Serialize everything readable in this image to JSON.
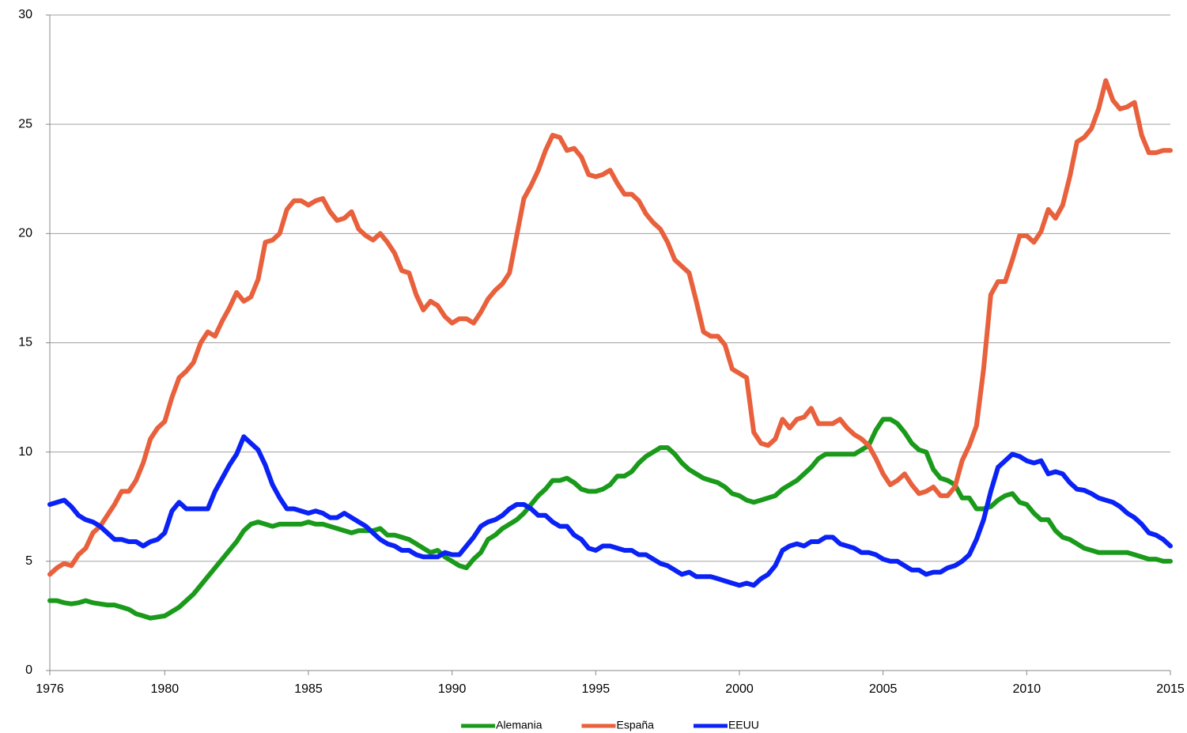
{
  "chart_data": {
    "type": "line",
    "x": [
      1976,
      1976.25,
      1976.5,
      1976.75,
      1977,
      1977.25,
      1977.5,
      1977.75,
      1978,
      1978.25,
      1978.5,
      1978.75,
      1979,
      1979.25,
      1979.5,
      1979.75,
      1980,
      1980.25,
      1980.5,
      1980.75,
      1981,
      1981.25,
      1981.5,
      1981.75,
      1982,
      1982.25,
      1982.5,
      1982.75,
      1983,
      1983.25,
      1983.5,
      1983.75,
      1984,
      1984.25,
      1984.5,
      1984.75,
      1985,
      1985.25,
      1985.5,
      1985.75,
      1986,
      1986.25,
      1986.5,
      1986.75,
      1987,
      1987.25,
      1987.5,
      1987.75,
      1988,
      1988.25,
      1988.5,
      1988.75,
      1989,
      1989.25,
      1989.5,
      1989.75,
      1990,
      1990.25,
      1990.5,
      1990.75,
      1991,
      1991.25,
      1991.5,
      1991.75,
      1992,
      1992.25,
      1992.5,
      1992.75,
      1993,
      1993.25,
      1993.5,
      1993.75,
      1994,
      1994.25,
      1994.5,
      1994.75,
      1995,
      1995.25,
      1995.5,
      1995.75,
      1996,
      1996.25,
      1996.5,
      1996.75,
      1997,
      1997.25,
      1997.5,
      1997.75,
      1998,
      1998.25,
      1998.5,
      1998.75,
      1999,
      1999.25,
      1999.5,
      1999.75,
      2000,
      2000.25,
      2000.5,
      2000.75,
      2001,
      2001.25,
      2001.5,
      2001.75,
      2002,
      2002.25,
      2002.5,
      2002.75,
      2003,
      2003.25,
      2003.5,
      2003.75,
      2004,
      2004.25,
      2004.5,
      2004.75,
      2005,
      2005.25,
      2005.5,
      2005.75,
      2006,
      2006.25,
      2006.5,
      2006.75,
      2007,
      2007.25,
      2007.5,
      2007.75,
      2008,
      2008.25,
      2008.5,
      2008.75,
      2009,
      2009.25,
      2009.5,
      2009.75,
      2010,
      2010.25,
      2010.5,
      2010.75,
      2011,
      2011.25,
      2011.5,
      2011.75,
      2012,
      2012.25,
      2012.5,
      2012.75,
      2013,
      2013.25,
      2013.5,
      2013.75,
      2014,
      2014.25,
      2014.5,
      2014.75,
      2015
    ],
    "series": [
      {
        "name": "Alemania",
        "color": "#1a9a1a",
        "values": [
          3.2,
          3.2,
          3.1,
          3.05,
          3.1,
          3.2,
          3.1,
          3.05,
          3.0,
          3.0,
          2.9,
          2.8,
          2.6,
          2.5,
          2.4,
          2.45,
          2.5,
          2.7,
          2.9,
          3.2,
          3.5,
          3.9,
          4.3,
          4.7,
          5.1,
          5.5,
          5.9,
          6.4,
          6.7,
          6.8,
          6.7,
          6.6,
          6.7,
          6.7,
          6.7,
          6.7,
          6.8,
          6.7,
          6.7,
          6.6,
          6.5,
          6.4,
          6.3,
          6.4,
          6.4,
          6.4,
          6.5,
          6.2,
          6.2,
          6.1,
          6.0,
          5.8,
          5.6,
          5.4,
          5.5,
          5.2,
          5.0,
          4.8,
          4.7,
          5.1,
          5.4,
          6.0,
          6.2,
          6.5,
          6.7,
          6.9,
          7.2,
          7.6,
          8.0,
          8.3,
          8.7,
          8.7,
          8.8,
          8.6,
          8.3,
          8.2,
          8.2,
          8.3,
          8.5,
          8.9,
          8.9,
          9.1,
          9.5,
          9.8,
          10.0,
          10.2,
          10.2,
          9.9,
          9.5,
          9.2,
          9.0,
          8.8,
          8.7,
          8.6,
          8.4,
          8.1,
          8.0,
          7.8,
          7.7,
          7.8,
          7.9,
          8.0,
          8.3,
          8.5,
          8.7,
          9.0,
          9.3,
          9.7,
          9.9,
          9.9,
          9.9,
          9.9,
          9.9,
          10.1,
          10.3,
          11.0,
          11.5,
          11.5,
          11.3,
          10.9,
          10.4,
          10.1,
          10.0,
          9.2,
          8.8,
          8.7,
          8.5,
          7.9,
          7.9,
          7.4,
          7.4,
          7.5,
          7.8,
          8.0,
          8.1,
          7.7,
          7.6,
          7.2,
          6.9,
          6.9,
          6.4,
          6.1,
          6.0,
          5.8,
          5.6,
          5.5,
          5.4,
          5.4,
          5.4,
          5.4,
          5.4,
          5.3,
          5.2,
          5.1,
          5.1,
          5.0,
          5.0
        ]
      },
      {
        "name": "España",
        "color": "#e8603c",
        "values": [
          4.4,
          4.7,
          4.9,
          4.8,
          5.3,
          5.6,
          6.3,
          6.6,
          7.1,
          7.6,
          8.2,
          8.2,
          8.7,
          9.5,
          10.6,
          11.1,
          11.4,
          12.5,
          13.4,
          13.7,
          14.1,
          15.0,
          15.5,
          15.3,
          16.0,
          16.6,
          17.3,
          16.9,
          17.1,
          17.9,
          19.6,
          19.7,
          20.0,
          21.1,
          21.5,
          21.5,
          21.3,
          21.5,
          21.6,
          21.0,
          20.6,
          20.7,
          21.0,
          20.2,
          19.9,
          19.7,
          20.0,
          19.6,
          19.1,
          18.3,
          18.2,
          17.2,
          16.5,
          16.9,
          16.7,
          16.2,
          15.9,
          16.1,
          16.1,
          15.9,
          16.4,
          17.0,
          17.4,
          17.7,
          18.2,
          19.9,
          21.6,
          22.2,
          22.9,
          23.8,
          24.5,
          24.4,
          23.8,
          23.9,
          23.5,
          22.7,
          22.6,
          22.7,
          22.9,
          22.3,
          21.8,
          21.8,
          21.5,
          20.9,
          20.5,
          20.2,
          19.6,
          18.8,
          18.5,
          18.2,
          16.9,
          15.5,
          15.3,
          15.3,
          14.9,
          13.8,
          13.6,
          13.4,
          10.9,
          10.4,
          10.3,
          10.6,
          11.5,
          11.1,
          11.5,
          11.6,
          12.0,
          11.3,
          11.3,
          11.3,
          11.5,
          11.1,
          10.8,
          10.6,
          10.3,
          9.7,
          9.0,
          8.5,
          8.7,
          9.0,
          8.5,
          8.1,
          8.2,
          8.4,
          8.0,
          8.0,
          8.4,
          9.6,
          10.3,
          11.2,
          13.8,
          17.2,
          17.8,
          17.8,
          18.8,
          19.9,
          19.9,
          19.6,
          20.1,
          21.1,
          20.7,
          21.3,
          22.6,
          24.2,
          24.4,
          24.8,
          25.7,
          27.0,
          26.1,
          25.7,
          25.8,
          26.0,
          24.5,
          23.7,
          23.7,
          23.8,
          23.8
        ]
      },
      {
        "name": "EEUU",
        "color": "#0a22f5",
        "values": [
          7.6,
          7.7,
          7.8,
          7.5,
          7.1,
          6.9,
          6.8,
          6.6,
          6.3,
          6.0,
          6.0,
          5.9,
          5.9,
          5.7,
          5.9,
          6.0,
          6.3,
          7.3,
          7.7,
          7.4,
          7.4,
          7.4,
          7.4,
          8.2,
          8.8,
          9.4,
          9.9,
          10.7,
          10.4,
          10.1,
          9.4,
          8.5,
          7.9,
          7.4,
          7.4,
          7.3,
          7.2,
          7.3,
          7.2,
          7.0,
          7.0,
          7.2,
          7.0,
          6.8,
          6.6,
          6.3,
          6.0,
          5.8,
          5.7,
          5.5,
          5.5,
          5.3,
          5.2,
          5.2,
          5.2,
          5.4,
          5.3,
          5.3,
          5.7,
          6.1,
          6.6,
          6.8,
          6.9,
          7.1,
          7.4,
          7.6,
          7.6,
          7.4,
          7.1,
          7.1,
          6.8,
          6.6,
          6.6,
          6.2,
          6.0,
          5.6,
          5.5,
          5.7,
          5.7,
          5.6,
          5.5,
          5.5,
          5.3,
          5.3,
          5.1,
          4.9,
          4.8,
          4.6,
          4.4,
          4.5,
          4.3,
          4.3,
          4.3,
          4.2,
          4.1,
          4.0,
          3.9,
          4.0,
          3.9,
          4.2,
          4.4,
          4.8,
          5.5,
          5.7,
          5.8,
          5.7,
          5.9,
          5.9,
          6.1,
          6.1,
          5.8,
          5.7,
          5.6,
          5.4,
          5.4,
          5.3,
          5.1,
          5.0,
          5.0,
          4.8,
          4.6,
          4.6,
          4.4,
          4.5,
          4.5,
          4.7,
          4.8,
          5.0,
          5.3,
          6.0,
          6.9,
          8.2,
          9.3,
          9.6,
          9.9,
          9.8,
          9.6,
          9.5,
          9.6,
          9.0,
          9.1,
          9.0,
          8.6,
          8.3,
          8.25,
          8.1,
          7.9,
          7.8,
          7.7,
          7.5,
          7.2,
          7.0,
          6.7,
          6.3,
          6.2,
          6.0,
          5.7
        ]
      }
    ],
    "xlim": [
      1976,
      2015
    ],
    "xticks": [
      1976,
      1980,
      1985,
      1990,
      1995,
      2000,
      2005,
      2010,
      2015
    ],
    "ylim": [
      0,
      30
    ],
    "yticks": [
      0,
      5,
      10,
      15,
      20,
      25,
      30
    ],
    "grid": true,
    "legend": "bottom"
  }
}
